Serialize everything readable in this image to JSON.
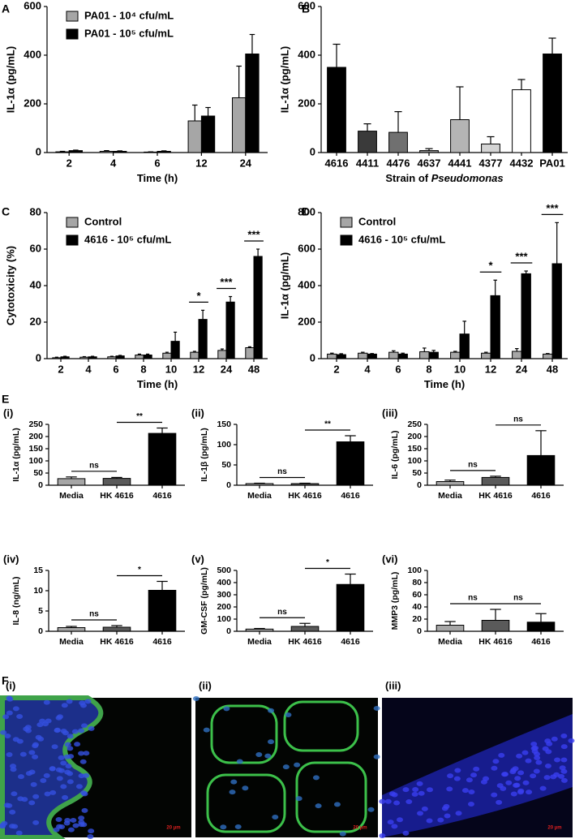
{
  "chart_data": [
    {
      "type": "bar",
      "panel": "A",
      "ylabel": "IL-1α (pg/mL)",
      "xlabel": [
        "Time (h)"
      ],
      "categories": [
        "2",
        "4",
        "6",
        "12",
        "24"
      ],
      "series": [
        {
          "name": "PA01 - 10⁴ cfu/mL",
          "color": "#a6a6a6",
          "values": [
            3,
            5,
            2,
            130,
            225
          ],
          "errors": [
            2,
            3,
            1,
            65,
            130
          ]
        },
        {
          "name": "PA01 - 10⁵ cfu/mL",
          "color": "#000000",
          "values": [
            8,
            5,
            5,
            150,
            405
          ],
          "errors": [
            2,
            2,
            2,
            35,
            80
          ]
        }
      ],
      "ylim": [
        0,
        600
      ],
      "yticks": [
        0,
        200,
        400,
        600
      ],
      "legend": "upper left"
    },
    {
      "type": "bar",
      "panel": "B",
      "ylabel": "IL-1α (pg/mL)",
      "xlabel": [
        "Strain of ",
        "Pseudomonas"
      ],
      "categories": [
        "4616",
        "4411",
        "4476",
        "4637",
        "4441",
        "4377",
        "4432",
        "PA01"
      ],
      "values": [
        350,
        88,
        83,
        8,
        135,
        35,
        258,
        405
      ],
      "errors": [
        95,
        30,
        85,
        8,
        135,
        30,
        42,
        65
      ],
      "colors": [
        "#000000",
        "#3a3a3a",
        "#707070",
        "#8c8c8c",
        "#b4b4b4",
        "#d4d4d4",
        "#ffffff",
        "#000000"
      ],
      "ylim": [
        0,
        600
      ],
      "yticks": [
        0,
        200,
        400,
        600
      ]
    },
    {
      "type": "bar",
      "panel": "C",
      "ylabel": "Cytotoxicity (%)",
      "xlabel": [
        "Time (h)"
      ],
      "categories": [
        "2",
        "4",
        "6",
        "8",
        "10",
        "12",
        "24",
        "48"
      ],
      "series": [
        {
          "name": "Control",
          "color": "#a6a6a6",
          "values": [
            0.5,
            0.8,
            1,
            2,
            3,
            3.5,
            4.5,
            6
          ],
          "errors": [
            0.3,
            0.3,
            0.3,
            0.5,
            0.5,
            0.5,
            0.8,
            0.5
          ]
        },
        {
          "name": "4616 - 10⁵ cfu/mL",
          "color": "#000000",
          "values": [
            1,
            1,
            1.5,
            2,
            9.5,
            21.5,
            31,
            56
          ],
          "errors": [
            0.3,
            0.3,
            0.3,
            0.5,
            5,
            5,
            3,
            4
          ]
        }
      ],
      "ylim": [
        0,
        80
      ],
      "yticks": [
        0,
        20,
        40,
        60,
        80
      ],
      "legend": "upper left",
      "annotations": [
        {
          "text": "*",
          "categories": [
            "12"
          ]
        },
        {
          "text": "***",
          "categories": [
            "24"
          ]
        },
        {
          "text": "***",
          "categories": [
            "48"
          ]
        }
      ]
    },
    {
      "type": "bar",
      "panel": "D",
      "ylabel": "IL-1α (pg/mL)",
      "xlabel": [
        "Time (h)"
      ],
      "categories": [
        "2",
        "4",
        "6",
        "8",
        "10",
        "12",
        "24",
        "48"
      ],
      "series": [
        {
          "name": "Control",
          "color": "#a6a6a6",
          "values": [
            25,
            30,
            35,
            38,
            35,
            30,
            40,
            25
          ],
          "errors": [
            5,
            5,
            8,
            20,
            5,
            5,
            15,
            3
          ]
        },
        {
          "name": "4616 - 10⁵ cfu/mL",
          "color": "#000000",
          "values": [
            22,
            25,
            25,
            35,
            135,
            345,
            465,
            520
          ],
          "errors": [
            5,
            3,
            5,
            10,
            70,
            85,
            15,
            225
          ]
        }
      ],
      "ylim": [
        0,
        800
      ],
      "yticks": [
        0,
        200,
        400,
        600,
        800
      ],
      "legend": "upper left",
      "annotations": [
        {
          "text": "*",
          "categories": [
            "12"
          ]
        },
        {
          "text": "***",
          "categories": [
            "24"
          ]
        },
        {
          "text": "***",
          "categories": [
            "48"
          ]
        }
      ]
    },
    {
      "type": "bar",
      "panel": "(i)",
      "ylabel": "IL-1α (pg/mL)",
      "categories": [
        "Media",
        "HK 4616",
        "4616"
      ],
      "colors": [
        "#a6a6a6",
        "#5a5a5a",
        "#000000"
      ],
      "values": [
        27,
        28,
        213
      ],
      "errors": [
        7,
        4,
        22
      ],
      "ylim": [
        0,
        250
      ],
      "yticks": [
        0,
        50,
        100,
        150,
        200,
        250
      ],
      "annotations": [
        {
          "text": "ns",
          "categories": [
            "Media",
            "HK 4616"
          ]
        },
        {
          "text": "**",
          "categories": [
            "HK 4616",
            "4616"
          ]
        }
      ]
    },
    {
      "type": "bar",
      "panel": "(ii)",
      "ylabel": "IL-1β (pg/mL)",
      "categories": [
        "Media",
        "HK 4616",
        "4616"
      ],
      "colors": [
        "#a6a6a6",
        "#5a5a5a",
        "#000000"
      ],
      "values": [
        4,
        4,
        107
      ],
      "errors": [
        1,
        1,
        15
      ],
      "ylim": [
        0,
        150
      ],
      "yticks": [
        0,
        50,
        100,
        150
      ],
      "annotations": [
        {
          "text": "ns",
          "categories": [
            "Media",
            "HK 4616"
          ]
        },
        {
          "text": "**",
          "categories": [
            "HK 4616",
            "4616"
          ]
        }
      ]
    },
    {
      "type": "bar",
      "panel": "(iii)",
      "ylabel": "IL-6 (pg/mL)",
      "categories": [
        "Media",
        "HK 4616",
        "4616"
      ],
      "colors": [
        "#a6a6a6",
        "#5a5a5a",
        "#000000"
      ],
      "values": [
        15,
        32,
        122
      ],
      "errors": [
        6,
        5,
        102
      ],
      "ylim": [
        0,
        250
      ],
      "yticks": [
        0,
        50,
        100,
        150,
        200,
        250
      ],
      "annotations": [
        {
          "text": "ns",
          "categories": [
            "Media",
            "HK 4616"
          ]
        },
        {
          "text": "ns",
          "categories": [
            "HK 4616",
            "4616"
          ]
        }
      ]
    },
    {
      "type": "bar",
      "panel": "(iv)",
      "ylabel": "IL-8 (ng/mL)",
      "categories": [
        "Media",
        "HK 4616",
        "4616"
      ],
      "colors": [
        "#a6a6a6",
        "#5a5a5a",
        "#000000"
      ],
      "values": [
        0.9,
        1.0,
        10.1
      ],
      "errors": [
        0.3,
        0.4,
        2.2
      ],
      "ylim": [
        0,
        15
      ],
      "yticks": [
        0,
        5,
        10,
        15
      ],
      "annotations": [
        {
          "text": "ns",
          "categories": [
            "Media",
            "HK 4616"
          ]
        },
        {
          "text": "*",
          "categories": [
            "HK 4616",
            "4616"
          ]
        }
      ]
    },
    {
      "type": "bar",
      "panel": "(v)",
      "ylabel": "GM-CSF (pg/mL)",
      "categories": [
        "Media",
        "HK 4616",
        "4616"
      ],
      "colors": [
        "#a6a6a6",
        "#5a5a5a",
        "#000000"
      ],
      "values": [
        18,
        40,
        385
      ],
      "errors": [
        5,
        25,
        85
      ],
      "ylim": [
        0,
        500
      ],
      "yticks": [
        0,
        100,
        200,
        300,
        400,
        500
      ],
      "annotations": [
        {
          "text": "ns",
          "categories": [
            "Media",
            "HK 4616"
          ]
        },
        {
          "text": "*",
          "categories": [
            "HK 4616",
            "4616"
          ]
        }
      ]
    },
    {
      "type": "bar",
      "panel": "(vi)",
      "ylabel": "MMP3 (pg/mL)",
      "categories": [
        "Media",
        "HK 4616",
        "4616"
      ],
      "colors": [
        "#a6a6a6",
        "#5a5a5a",
        "#000000"
      ],
      "values": [
        10,
        18,
        15
      ],
      "errors": [
        6,
        18,
        14
      ],
      "ylim": [
        0,
        100
      ],
      "yticks": [
        0,
        20,
        40,
        60,
        80,
        100
      ],
      "annotations": [
        {
          "text": "ns",
          "categories": [
            "Media",
            "HK 4616"
          ]
        },
        {
          "text": "ns",
          "categories": [
            "HK 4616",
            "4616"
          ]
        }
      ]
    }
  ],
  "section_labels": [
    "E",
    "F"
  ],
  "images": [
    {
      "label": "(i)",
      "scale": "20 µm"
    },
    {
      "label": "(ii)",
      "scale": "20 µm"
    },
    {
      "label": "(iii)",
      "scale": "20 µm"
    }
  ]
}
